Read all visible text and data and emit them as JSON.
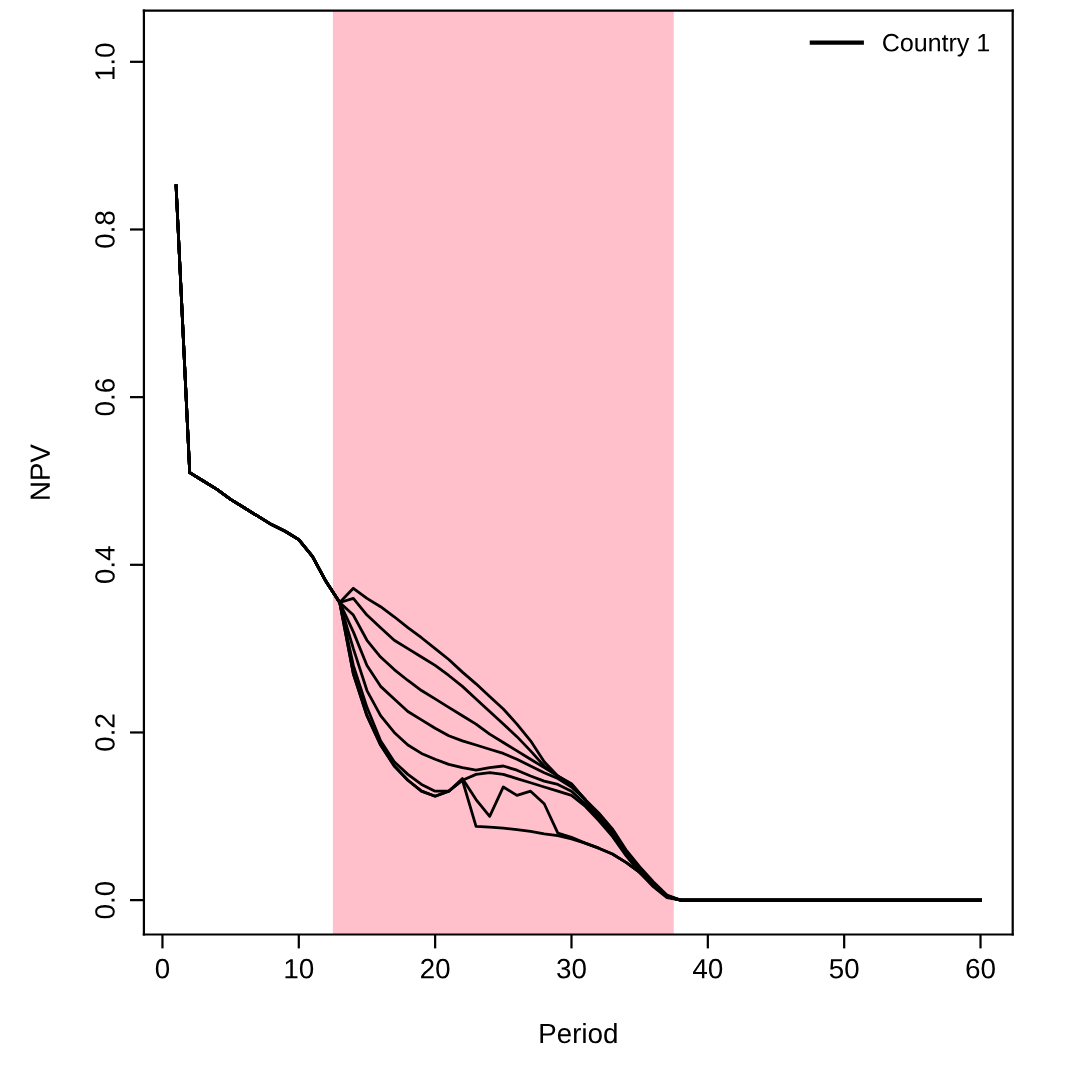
{
  "chart_data": {
    "type": "line",
    "xlabel": "Period",
    "ylabel": "NPV",
    "x": [
      1,
      2,
      3,
      4,
      5,
      6,
      7,
      8,
      9,
      10,
      11,
      12,
      13,
      14,
      15,
      16,
      17,
      18,
      19,
      20,
      21,
      22,
      23,
      24,
      25,
      26,
      27,
      28,
      29,
      30,
      31,
      32,
      33,
      34,
      35,
      36,
      37,
      38,
      60
    ],
    "xlim": [
      -1.36,
      62.36
    ],
    "xticks": [
      0,
      10,
      20,
      30,
      40,
      50,
      60
    ],
    "ylim": [
      -0.041,
      1.061
    ],
    "yticks": [
      {
        "value": 0,
        "label": "0.0"
      },
      0.2,
      0.4,
      0.6,
      0.8,
      {
        "value": 1,
        "label": "1.0"
      }
    ],
    "legend": "top right",
    "grid": false,
    "bands": [
      {
        "axis": "x",
        "from": 12.5,
        "to": 37.5,
        "color": "#ffc0cb"
      }
    ],
    "series": [
      {
        "name": "Country 1",
        "color": "#000000",
        "values": [
          0.852,
          0.51,
          0.5,
          0.49,
          0.478,
          0.468,
          0.458,
          0.448,
          0.44,
          0.43,
          0.41,
          0.38,
          0.355,
          0.372,
          0.36,
          0.35,
          0.338,
          0.325,
          0.313,
          0.3,
          0.287,
          0.272,
          0.258,
          0.243,
          0.228,
          0.21,
          0.19,
          0.165,
          0.148,
          0.139,
          0.12,
          0.104,
          0.085,
          0.06,
          0.04,
          0.022,
          0.006,
          0,
          0
        ]
      },
      {
        "color": "#000000",
        "values": [
          0.852,
          0.51,
          0.5,
          0.49,
          0.478,
          0.468,
          0.458,
          0.448,
          0.44,
          0.43,
          0.41,
          0.38,
          0.355,
          0.36,
          0.34,
          0.325,
          0.31,
          0.3,
          0.29,
          0.28,
          0.268,
          0.255,
          0.24,
          0.225,
          0.21,
          0.195,
          0.178,
          0.16,
          0.148,
          0.138,
          0.12,
          0.1,
          0.082,
          0.058,
          0.038,
          0.02,
          0.005,
          0,
          0
        ]
      },
      {
        "color": "#000000",
        "values": [
          0.852,
          0.51,
          0.5,
          0.49,
          0.478,
          0.468,
          0.458,
          0.448,
          0.44,
          0.43,
          0.41,
          0.38,
          0.355,
          0.34,
          0.31,
          0.29,
          0.275,
          0.262,
          0.25,
          0.24,
          0.23,
          0.22,
          0.21,
          0.198,
          0.188,
          0.178,
          0.168,
          0.158,
          0.148,
          0.137,
          0.12,
          0.1,
          0.08,
          0.057,
          0.036,
          0.019,
          0.005,
          0,
          0
        ]
      },
      {
        "color": "#000000",
        "values": [
          0.852,
          0.51,
          0.5,
          0.49,
          0.478,
          0.468,
          0.458,
          0.448,
          0.44,
          0.43,
          0.41,
          0.38,
          0.355,
          0.32,
          0.28,
          0.255,
          0.24,
          0.225,
          0.215,
          0.205,
          0.196,
          0.19,
          0.185,
          0.18,
          0.175,
          0.168,
          0.16,
          0.152,
          0.145,
          0.135,
          0.12,
          0.1,
          0.08,
          0.056,
          0.035,
          0.018,
          0.004,
          0,
          0
        ]
      },
      {
        "color": "#000000",
        "values": [
          0.852,
          0.51,
          0.5,
          0.49,
          0.478,
          0.468,
          0.458,
          0.448,
          0.44,
          0.43,
          0.41,
          0.38,
          0.355,
          0.3,
          0.25,
          0.22,
          0.2,
          0.185,
          0.175,
          0.168,
          0.162,
          0.158,
          0.155,
          0.158,
          0.16,
          0.155,
          0.148,
          0.142,
          0.138,
          0.13,
          0.115,
          0.098,
          0.078,
          0.055,
          0.034,
          0.017,
          0.004,
          0,
          0
        ]
      },
      {
        "color": "#000000",
        "values": [
          0.852,
          0.51,
          0.5,
          0.49,
          0.478,
          0.468,
          0.458,
          0.448,
          0.44,
          0.43,
          0.41,
          0.38,
          0.355,
          0.27,
          0.22,
          0.185,
          0.16,
          0.143,
          0.13,
          0.124,
          0.13,
          0.143,
          0.15,
          0.152,
          0.15,
          0.145,
          0.14,
          0.135,
          0.13,
          0.125,
          0.112,
          0.095,
          0.076,
          0.053,
          0.033,
          0.016,
          0.003,
          0,
          0
        ]
      },
      {
        "color": "#000000",
        "values": [
          0.852,
          0.51,
          0.5,
          0.49,
          0.478,
          0.468,
          0.458,
          0.448,
          0.44,
          0.43,
          0.41,
          0.38,
          0.355,
          0.27,
          0.22,
          0.185,
          0.16,
          0.143,
          0.13,
          0.124,
          0.13,
          0.143,
          0.088,
          0.087,
          0.086,
          0.084,
          0.082,
          0.079,
          0.077,
          0.073,
          0.068,
          0.062,
          0.055,
          0.045,
          0.033,
          0.018,
          0.004,
          0,
          0
        ]
      },
      {
        "color": "#000000",
        "values": [
          0.852,
          0.51,
          0.5,
          0.49,
          0.478,
          0.468,
          0.458,
          0.448,
          0.44,
          0.43,
          0.41,
          0.38,
          0.355,
          0.28,
          0.23,
          0.19,
          0.165,
          0.15,
          0.138,
          0.13,
          0.13,
          0.145,
          0.12,
          0.1,
          0.135,
          0.125,
          0.13,
          0.115,
          0.08,
          0.075,
          0.068,
          0.062,
          0.055,
          0.045,
          0.033,
          0.018,
          0.004,
          0,
          0
        ]
      }
    ]
  }
}
